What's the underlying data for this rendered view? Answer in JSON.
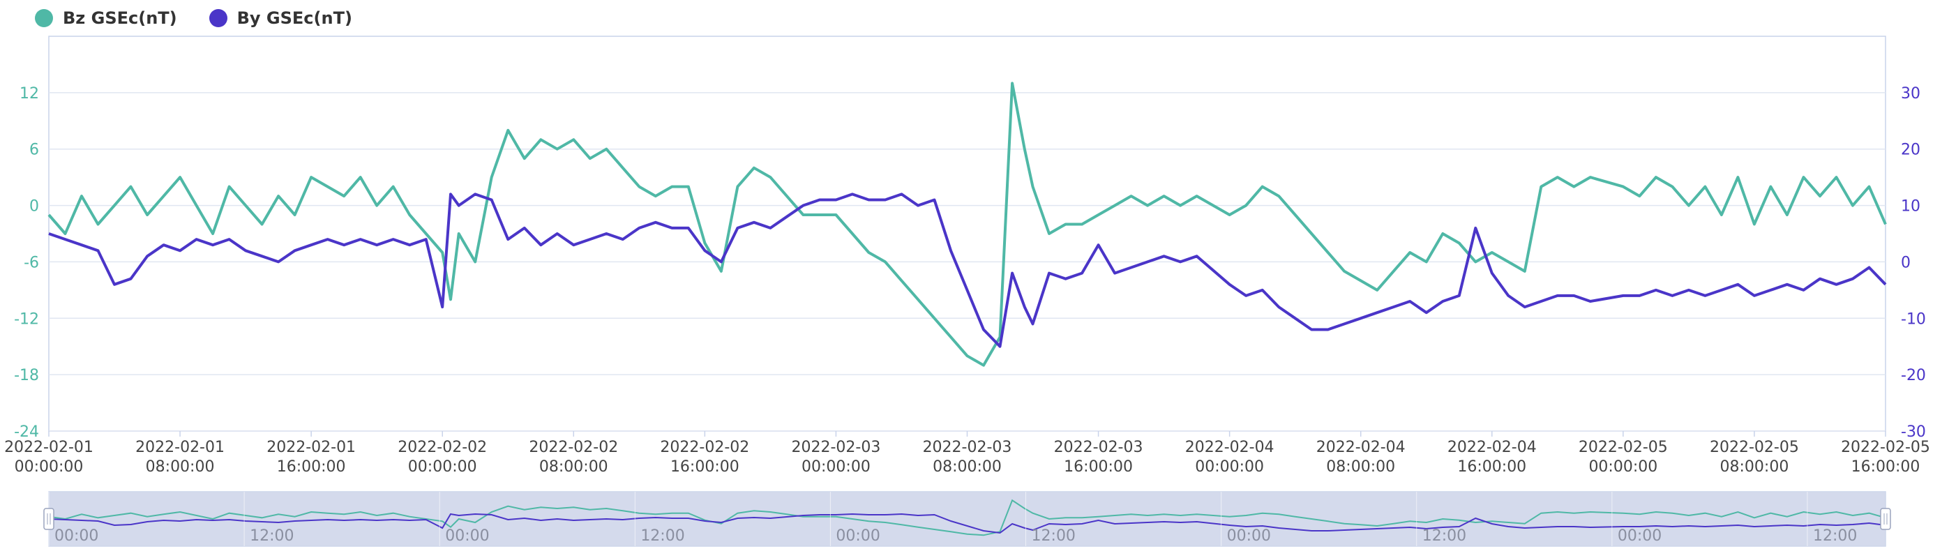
{
  "chart_data": {
    "type": "line",
    "legend": {
      "position": "top-left"
    },
    "grid": true,
    "colors": {
      "bz": "#4fb8a6",
      "by": "#4a35c8",
      "grid": "#e0e6f1",
      "axis": "#c9d3ea",
      "slider_fill": "#d0d7ea"
    },
    "x": {
      "min": "2022-02-01 00:00:00",
      "max": "2022-02-05 16:00:00"
    },
    "x_tick_labels": [
      [
        "2022-02-01",
        "00:00:00"
      ],
      [
        "2022-02-01",
        "08:00:00"
      ],
      [
        "2022-02-01",
        "16:00:00"
      ],
      [
        "2022-02-02",
        "00:00:00"
      ],
      [
        "2022-02-02",
        "08:00:00"
      ],
      [
        "2022-02-02",
        "16:00:00"
      ],
      [
        "2022-02-03",
        "00:00:00"
      ],
      [
        "2022-02-03",
        "08:00:00"
      ],
      [
        "2022-02-03",
        "16:00:00"
      ],
      [
        "2022-02-04",
        "00:00:00"
      ],
      [
        "2022-02-04",
        "08:00:00"
      ],
      [
        "2022-02-04",
        "16:00:00"
      ],
      [
        "2022-02-05",
        "00:00:00"
      ],
      [
        "2022-02-05",
        "08:00:00"
      ],
      [
        "2022-02-05",
        "16:00:00"
      ]
    ],
    "y_left": {
      "min": -24,
      "max": 18,
      "ticks": [
        "12",
        "6",
        "0",
        "-6",
        "-12",
        "-18",
        "-24"
      ]
    },
    "y_right": {
      "min": -30,
      "max": 40,
      "ticks": [
        "30",
        "20",
        "10",
        "0",
        "-10",
        "-20",
        "-30"
      ]
    },
    "series": [
      {
        "name": "Bz GSEc(nT)",
        "axis": "left",
        "color": "#4fb8a6",
        "points": [
          [
            "2022-02-01 00:00",
            -1
          ],
          [
            "2022-02-01 01:00",
            -3
          ],
          [
            "2022-02-01 02:00",
            1
          ],
          [
            "2022-02-01 03:00",
            -2
          ],
          [
            "2022-02-01 04:00",
            0
          ],
          [
            "2022-02-01 05:00",
            2
          ],
          [
            "2022-02-01 06:00",
            -1
          ],
          [
            "2022-02-01 07:00",
            1
          ],
          [
            "2022-02-01 08:00",
            3
          ],
          [
            "2022-02-01 09:00",
            0
          ],
          [
            "2022-02-01 10:00",
            -3
          ],
          [
            "2022-02-01 11:00",
            2
          ],
          [
            "2022-02-01 12:00",
            0
          ],
          [
            "2022-02-01 13:00",
            -2
          ],
          [
            "2022-02-01 14:00",
            1
          ],
          [
            "2022-02-01 15:00",
            -1
          ],
          [
            "2022-02-01 16:00",
            3
          ],
          [
            "2022-02-01 17:00",
            2
          ],
          [
            "2022-02-01 18:00",
            1
          ],
          [
            "2022-02-01 19:00",
            3
          ],
          [
            "2022-02-01 20:00",
            0
          ],
          [
            "2022-02-01 21:00",
            2
          ],
          [
            "2022-02-01 22:00",
            -1
          ],
          [
            "2022-02-02 00:00",
            -5
          ],
          [
            "2022-02-02 00:30",
            -10
          ],
          [
            "2022-02-02 01:00",
            -3
          ],
          [
            "2022-02-02 02:00",
            -6
          ],
          [
            "2022-02-02 03:00",
            3
          ],
          [
            "2022-02-02 04:00",
            8
          ],
          [
            "2022-02-02 05:00",
            5
          ],
          [
            "2022-02-02 06:00",
            7
          ],
          [
            "2022-02-02 07:00",
            6
          ],
          [
            "2022-02-02 08:00",
            7
          ],
          [
            "2022-02-02 09:00",
            5
          ],
          [
            "2022-02-02 10:00",
            6
          ],
          [
            "2022-02-02 11:00",
            4
          ],
          [
            "2022-02-02 12:00",
            2
          ],
          [
            "2022-02-02 13:00",
            1
          ],
          [
            "2022-02-02 14:00",
            2
          ],
          [
            "2022-02-02 15:00",
            2
          ],
          [
            "2022-02-02 16:00",
            -4
          ],
          [
            "2022-02-02 17:00",
            -7
          ],
          [
            "2022-02-02 18:00",
            2
          ],
          [
            "2022-02-02 19:00",
            4
          ],
          [
            "2022-02-02 20:00",
            3
          ],
          [
            "2022-02-02 21:00",
            1
          ],
          [
            "2022-02-02 22:00",
            -1
          ],
          [
            "2022-02-03 00:00",
            -1
          ],
          [
            "2022-02-03 01:00",
            -3
          ],
          [
            "2022-02-03 02:00",
            -5
          ],
          [
            "2022-02-03 03:00",
            -6
          ],
          [
            "2022-02-03 04:00",
            -8
          ],
          [
            "2022-02-03 05:00",
            -10
          ],
          [
            "2022-02-03 06:00",
            -12
          ],
          [
            "2022-02-03 07:00",
            -14
          ],
          [
            "2022-02-03 08:00",
            -16
          ],
          [
            "2022-02-03 09:00",
            -17
          ],
          [
            "2022-02-03 10:00",
            -14
          ],
          [
            "2022-02-03 10:45",
            13
          ],
          [
            "2022-02-03 11:30",
            6
          ],
          [
            "2022-02-03 12:00",
            2
          ],
          [
            "2022-02-03 13:00",
            -3
          ],
          [
            "2022-02-03 14:00",
            -2
          ],
          [
            "2022-02-03 15:00",
            -2
          ],
          [
            "2022-02-03 16:00",
            -1
          ],
          [
            "2022-02-03 17:00",
            0
          ],
          [
            "2022-02-03 18:00",
            1
          ],
          [
            "2022-02-03 19:00",
            0
          ],
          [
            "2022-02-03 20:00",
            1
          ],
          [
            "2022-02-03 21:00",
            0
          ],
          [
            "2022-02-03 22:00",
            1
          ],
          [
            "2022-02-04 00:00",
            -1
          ],
          [
            "2022-02-04 01:00",
            0
          ],
          [
            "2022-02-04 02:00",
            2
          ],
          [
            "2022-02-04 03:00",
            1
          ],
          [
            "2022-02-04 04:00",
            -1
          ],
          [
            "2022-02-04 05:00",
            -3
          ],
          [
            "2022-02-04 06:00",
            -5
          ],
          [
            "2022-02-04 07:00",
            -7
          ],
          [
            "2022-02-04 08:00",
            -8
          ],
          [
            "2022-02-04 09:00",
            -9
          ],
          [
            "2022-02-04 10:00",
            -7
          ],
          [
            "2022-02-04 11:00",
            -5
          ],
          [
            "2022-02-04 12:00",
            -6
          ],
          [
            "2022-02-04 13:00",
            -3
          ],
          [
            "2022-02-04 14:00",
            -4
          ],
          [
            "2022-02-04 15:00",
            -6
          ],
          [
            "2022-02-04 16:00",
            -5
          ],
          [
            "2022-02-04 17:00",
            -6
          ],
          [
            "2022-02-04 18:00",
            -7
          ],
          [
            "2022-02-04 19:00",
            2
          ],
          [
            "2022-02-04 20:00",
            3
          ],
          [
            "2022-02-04 21:00",
            2
          ],
          [
            "2022-02-04 22:00",
            3
          ],
          [
            "2022-02-05 00:00",
            2
          ],
          [
            "2022-02-05 01:00",
            1
          ],
          [
            "2022-02-05 02:00",
            3
          ],
          [
            "2022-02-05 03:00",
            2
          ],
          [
            "2022-02-05 04:00",
            0
          ],
          [
            "2022-02-05 05:00",
            2
          ],
          [
            "2022-02-05 06:00",
            -1
          ],
          [
            "2022-02-05 07:00",
            3
          ],
          [
            "2022-02-05 08:00",
            -2
          ],
          [
            "2022-02-05 09:00",
            2
          ],
          [
            "2022-02-05 10:00",
            -1
          ],
          [
            "2022-02-05 11:00",
            3
          ],
          [
            "2022-02-05 12:00",
            1
          ],
          [
            "2022-02-05 13:00",
            3
          ],
          [
            "2022-02-05 14:00",
            0
          ],
          [
            "2022-02-05 15:00",
            2
          ],
          [
            "2022-02-05 16:00",
            -2
          ]
        ]
      },
      {
        "name": "By GSEc(nT)",
        "axis": "right",
        "color": "#4a35c8",
        "points": [
          [
            "2022-02-01 00:00",
            5
          ],
          [
            "2022-02-01 01:00",
            4
          ],
          [
            "2022-02-01 02:00",
            3
          ],
          [
            "2022-02-01 03:00",
            2
          ],
          [
            "2022-02-01 04:00",
            -4
          ],
          [
            "2022-02-01 05:00",
            -3
          ],
          [
            "2022-02-01 06:00",
            1
          ],
          [
            "2022-02-01 07:00",
            3
          ],
          [
            "2022-02-01 08:00",
            2
          ],
          [
            "2022-02-01 09:00",
            4
          ],
          [
            "2022-02-01 10:00",
            3
          ],
          [
            "2022-02-01 11:00",
            4
          ],
          [
            "2022-02-01 12:00",
            2
          ],
          [
            "2022-02-01 13:00",
            1
          ],
          [
            "2022-02-01 14:00",
            0
          ],
          [
            "2022-02-01 15:00",
            2
          ],
          [
            "2022-02-01 16:00",
            3
          ],
          [
            "2022-02-01 17:00",
            4
          ],
          [
            "2022-02-01 18:00",
            3
          ],
          [
            "2022-02-01 19:00",
            4
          ],
          [
            "2022-02-01 20:00",
            3
          ],
          [
            "2022-02-01 21:00",
            4
          ],
          [
            "2022-02-01 22:00",
            3
          ],
          [
            "2022-02-01 23:00",
            4
          ],
          [
            "2022-02-02 00:00",
            -8
          ],
          [
            "2022-02-02 00:30",
            12
          ],
          [
            "2022-02-02 01:00",
            10
          ],
          [
            "2022-02-02 02:00",
            12
          ],
          [
            "2022-02-02 03:00",
            11
          ],
          [
            "2022-02-02 04:00",
            4
          ],
          [
            "2022-02-02 05:00",
            6
          ],
          [
            "2022-02-02 06:00",
            3
          ],
          [
            "2022-02-02 07:00",
            5
          ],
          [
            "2022-02-02 08:00",
            3
          ],
          [
            "2022-02-02 09:00",
            4
          ],
          [
            "2022-02-02 10:00",
            5
          ],
          [
            "2022-02-02 11:00",
            4
          ],
          [
            "2022-02-02 12:00",
            6
          ],
          [
            "2022-02-02 13:00",
            7
          ],
          [
            "2022-02-02 14:00",
            6
          ],
          [
            "2022-02-02 15:00",
            6
          ],
          [
            "2022-02-02 16:00",
            2
          ],
          [
            "2022-02-02 17:00",
            0
          ],
          [
            "2022-02-02 18:00",
            6
          ],
          [
            "2022-02-02 19:00",
            7
          ],
          [
            "2022-02-02 20:00",
            6
          ],
          [
            "2022-02-02 21:00",
            8
          ],
          [
            "2022-02-02 22:00",
            10
          ],
          [
            "2022-02-02 23:00",
            11
          ],
          [
            "2022-02-03 00:00",
            11
          ],
          [
            "2022-02-03 01:00",
            12
          ],
          [
            "2022-02-03 02:00",
            11
          ],
          [
            "2022-02-03 03:00",
            11
          ],
          [
            "2022-02-03 04:00",
            12
          ],
          [
            "2022-02-03 05:00",
            10
          ],
          [
            "2022-02-03 06:00",
            11
          ],
          [
            "2022-02-03 07:00",
            2
          ],
          [
            "2022-02-03 08:00",
            -5
          ],
          [
            "2022-02-03 09:00",
            -12
          ],
          [
            "2022-02-03 10:00",
            -15
          ],
          [
            "2022-02-03 10:45",
            -2
          ],
          [
            "2022-02-03 11:30",
            -8
          ],
          [
            "2022-02-03 12:00",
            -11
          ],
          [
            "2022-02-03 13:00",
            -2
          ],
          [
            "2022-02-03 14:00",
            -3
          ],
          [
            "2022-02-03 15:00",
            -2
          ],
          [
            "2022-02-03 16:00",
            3
          ],
          [
            "2022-02-03 17:00",
            -2
          ],
          [
            "2022-02-03 18:00",
            -1
          ],
          [
            "2022-02-03 19:00",
            0
          ],
          [
            "2022-02-03 20:00",
            1
          ],
          [
            "2022-02-03 21:00",
            0
          ],
          [
            "2022-02-03 22:00",
            1
          ],
          [
            "2022-02-04 00:00",
            -4
          ],
          [
            "2022-02-04 01:00",
            -6
          ],
          [
            "2022-02-04 02:00",
            -5
          ],
          [
            "2022-02-04 03:00",
            -8
          ],
          [
            "2022-02-04 04:00",
            -10
          ],
          [
            "2022-02-04 05:00",
            -12
          ],
          [
            "2022-02-04 06:00",
            -12
          ],
          [
            "2022-02-04 07:00",
            -11
          ],
          [
            "2022-02-04 08:00",
            -10
          ],
          [
            "2022-02-04 09:00",
            -9
          ],
          [
            "2022-02-04 10:00",
            -8
          ],
          [
            "2022-02-04 11:00",
            -7
          ],
          [
            "2022-02-04 12:00",
            -9
          ],
          [
            "2022-02-04 13:00",
            -7
          ],
          [
            "2022-02-04 14:00",
            -6
          ],
          [
            "2022-02-04 15:00",
            6
          ],
          [
            "2022-02-04 16:00",
            -2
          ],
          [
            "2022-02-04 17:00",
            -6
          ],
          [
            "2022-02-04 18:00",
            -8
          ],
          [
            "2022-02-04 19:00",
            -7
          ],
          [
            "2022-02-04 20:00",
            -6
          ],
          [
            "2022-02-04 21:00",
            -6
          ],
          [
            "2022-02-04 22:00",
            -7
          ],
          [
            "2022-02-05 00:00",
            -6
          ],
          [
            "2022-02-05 01:00",
            -6
          ],
          [
            "2022-02-05 02:00",
            -5
          ],
          [
            "2022-02-05 03:00",
            -6
          ],
          [
            "2022-02-05 04:00",
            -5
          ],
          [
            "2022-02-05 05:00",
            -6
          ],
          [
            "2022-02-05 06:00",
            -5
          ],
          [
            "2022-02-05 07:00",
            -4
          ],
          [
            "2022-02-05 08:00",
            -6
          ],
          [
            "2022-02-05 09:00",
            -5
          ],
          [
            "2022-02-05 10:00",
            -4
          ],
          [
            "2022-02-05 11:00",
            -5
          ],
          [
            "2022-02-05 12:00",
            -3
          ],
          [
            "2022-02-05 13:00",
            -4
          ],
          [
            "2022-02-05 14:00",
            -3
          ],
          [
            "2022-02-05 15:00",
            -1
          ],
          [
            "2022-02-05 16:00",
            -4
          ]
        ]
      }
    ],
    "zoom_slider": {
      "tick_labels": [
        "00:00",
        "12:00",
        "00:00",
        "12:00",
        "00:00",
        "12:00",
        "00:00",
        "12:00",
        "00:00",
        "12:00"
      ]
    }
  }
}
